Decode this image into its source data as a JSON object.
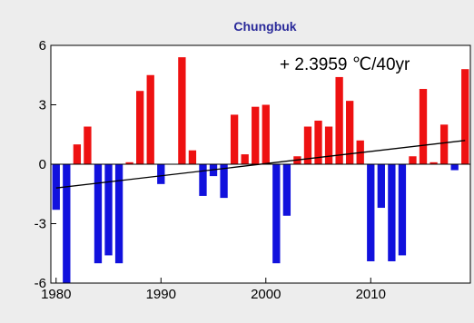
{
  "chart_data": {
    "type": "bar",
    "title": "Chungbuk",
    "annotation": "+ 2.3959 ℃/40yr",
    "xlabel": "",
    "ylabel": "",
    "xlim": [
      1979.5,
      2019.5
    ],
    "ylim": [
      -6,
      6
    ],
    "x_ticks": [
      1980,
      1990,
      2000,
      2010
    ],
    "x_tick_labels": [
      "1980",
      "1990",
      "2000",
      "2010"
    ],
    "y_ticks": [
      -6,
      -3,
      0,
      3,
      6
    ],
    "y_tick_labels": [
      "-6",
      "-3",
      "0",
      "3",
      "6"
    ],
    "grid": false,
    "colors": {
      "positive": "#ee1111",
      "negative": "#1111dd",
      "trend": "#000000",
      "title": "#2a2a9a"
    },
    "x": [
      1980,
      1981,
      1982,
      1983,
      1984,
      1985,
      1986,
      1987,
      1988,
      1989,
      1990,
      1991,
      1992,
      1993,
      1994,
      1995,
      1996,
      1997,
      1998,
      1999,
      2000,
      2001,
      2002,
      2003,
      2004,
      2005,
      2006,
      2007,
      2008,
      2009,
      2010,
      2011,
      2012,
      2013,
      2014,
      2015,
      2016,
      2017,
      2018,
      2019
    ],
    "values": [
      -2.3,
      -6.0,
      1.0,
      1.9,
      -5.0,
      -4.6,
      -5.0,
      0.1,
      3.7,
      4.5,
      -1.0,
      0.0,
      5.4,
      0.7,
      -1.6,
      -0.6,
      -1.7,
      2.5,
      0.5,
      2.9,
      3.0,
      -5.0,
      -2.6,
      0.4,
      1.9,
      2.2,
      1.9,
      4.4,
      3.2,
      1.2,
      -4.9,
      -2.2,
      -4.9,
      -4.6,
      0.4,
      3.8,
      0.1,
      2.0,
      -0.3,
      4.8
    ],
    "trend_line": {
      "x": [
        1980,
        2019
      ],
      "y": [
        -1.2,
        1.2
      ]
    }
  }
}
